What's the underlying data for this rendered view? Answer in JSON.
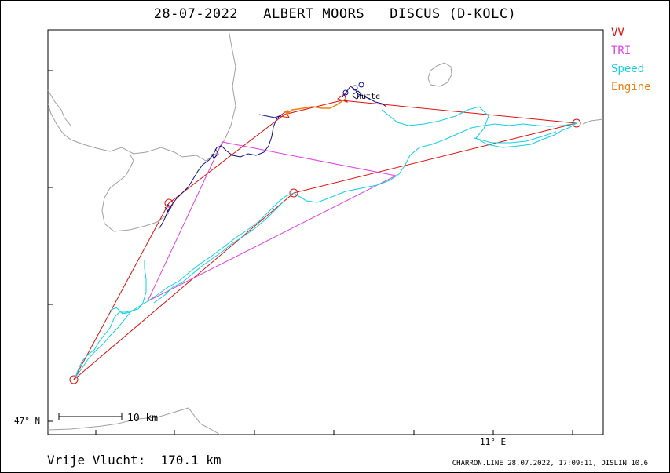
{
  "title": "28-07-2022   ALBERT MOORS   DISCUS (D-KOLC)",
  "legend": [
    {
      "label": "VV",
      "color": "#e01010"
    },
    {
      "label": "TRI",
      "color": "#e040e0"
    },
    {
      "label": "Speed",
      "color": "#10d0e0"
    },
    {
      "label": "Engine",
      "color": "#f08010"
    }
  ],
  "axes": {
    "lat_label": "47° N",
    "lon_label": "11° E"
  },
  "scale_bar": {
    "label": "10 km"
  },
  "place_label": "Hutte",
  "footer": {
    "distance_text": "Vrije Vlucht:  170.1 km",
    "source_text": "CHARRON.LINE 28.07.2022, 17:09:11, DISLIN 10.6"
  },
  "colors": {
    "frame": "#000000",
    "border_lines": "#a0a0a0",
    "climb_track": "#10108a"
  }
}
